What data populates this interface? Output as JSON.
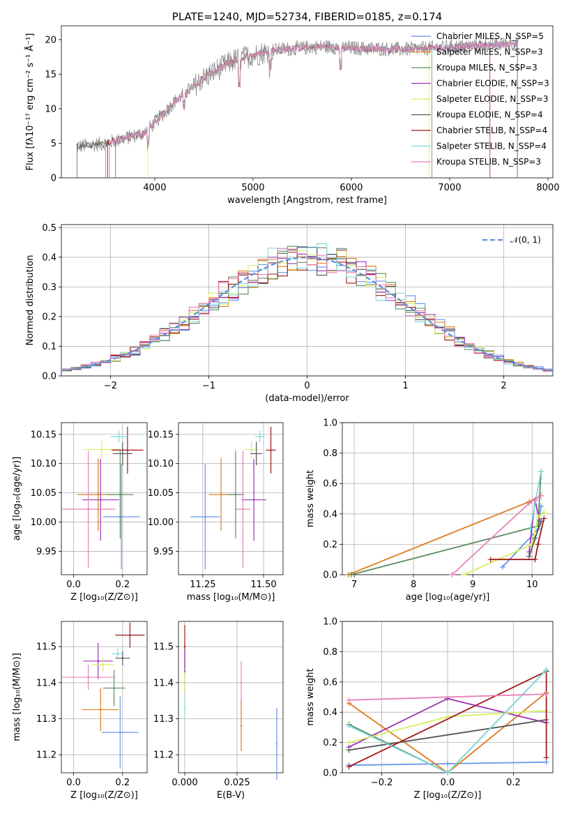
{
  "colors": [
    "#6495ed",
    "#e07b1c",
    "#5b8c5e",
    "#9b30b5",
    "#d4f060",
    "#555555",
    "#a01818",
    "#80dbe0",
    "#e880b8"
  ],
  "chart_data": [
    {
      "id": "spectrum",
      "type": "line",
      "title": "PLATE=1240, MJD=52734, FIBERID=0185, z=0.174",
      "xlabel": "wavelength [Angstrom, rest frame]",
      "ylabel": "Flux [fλ10⁻¹⁷ erg cm⁻² s⁻¹ Å⁻¹]",
      "xlim": [
        3050,
        8050
      ],
      "ylim": [
        0,
        22
      ],
      "xticks": [
        4000,
        5000,
        6000,
        7000,
        8000
      ],
      "yticks": [
        0,
        5,
        10,
        15,
        20
      ],
      "observed_color": "#808080",
      "continuum": {
        "x": [
          3200,
          3500,
          3900,
          4200,
          4500,
          4800,
          5200,
          5700,
          6000,
          6500,
          7000,
          7500,
          7700
        ],
        "y": [
          4.5,
          5.0,
          6.5,
          11.0,
          14.5,
          17.0,
          18.5,
          19.0,
          18.8,
          18.6,
          18.9,
          19.3,
          19.5
        ]
      },
      "model_start": [
        3520,
        3500,
        3540,
        3600,
        3930,
        3210,
        3520,
        3540,
        3540
      ],
      "model_end": [
        7690,
        7690,
        6820,
        7690,
        6790,
        7690,
        7410,
        7690,
        7690
      ],
      "series": [
        {
          "name": "Chabrier MILES, N_SSP=5"
        },
        {
          "name": "Salpeter MILES, N_SSP=3"
        },
        {
          "name": "Kroupa MILES, N_SSP=3"
        },
        {
          "name": "Chabrier ELODIE, N_SSP=3"
        },
        {
          "name": "Salpeter ELODIE, N_SSP=3"
        },
        {
          "name": "Kroupa ELODIE, N_SSP=4"
        },
        {
          "name": "Chabrier STELIB, N_SSP=4"
        },
        {
          "name": "Salpeter STELIB, N_SSP=4"
        },
        {
          "name": "Kroupa STELIB, N_SSP=3"
        }
      ],
      "legend": "top-right"
    },
    {
      "id": "residuals",
      "type": "line",
      "xlabel": "(data-model)/error",
      "ylabel": "Normed distribution",
      "xlim": [
        -2.5,
        2.5
      ],
      "ylim": [
        0,
        0.51
      ],
      "xticks": [
        -2,
        -1,
        0,
        1,
        2
      ],
      "yticks": [
        0.0,
        0.1,
        0.2,
        0.3,
        0.4,
        0.5
      ],
      "bin_width": 0.1,
      "reference_curve": {
        "label": "𝒩(0, 1)",
        "color": "#5b8dd9",
        "mean": 0,
        "sigma": 1
      },
      "legend": "top-right",
      "grid": true
    },
    {
      "id": "age_vs_Z",
      "type": "scatter",
      "xlabel": "Z [log₁₀(Z/Z⊙)]",
      "ylabel": "age  [log₁₀(age/yr)]",
      "xlim": [
        -0.05,
        0.3
      ],
      "ylim": [
        9.91,
        10.17
      ],
      "xticks": [
        0.0,
        0.2
      ],
      "yticks": [
        9.95,
        10.0,
        10.05,
        10.1,
        10.15
      ],
      "points": [
        {
          "x": 0.195,
          "y": 10.009,
          "xerr": 0.075,
          "yerr": 0.09
        },
        {
          "x": 0.1,
          "y": 10.047,
          "xerr": 0.085,
          "yerr": 0.062
        },
        {
          "x": 0.19,
          "y": 10.047,
          "xerr": 0.055,
          "yerr": 0.075
        },
        {
          "x": 0.11,
          "y": 10.038,
          "xerr": 0.075,
          "yerr": 0.07
        },
        {
          "x": 0.115,
          "y": 10.124,
          "xerr": 0.075,
          "yerr": 0.015
        },
        {
          "x": 0.2,
          "y": 10.117,
          "xerr": 0.04,
          "yerr": 0.02
        },
        {
          "x": 0.22,
          "y": 10.123,
          "xerr": 0.065,
          "yerr": 0.04
        },
        {
          "x": 0.185,
          "y": 10.146,
          "xerr": 0.035,
          "yerr": 0.01
        },
        {
          "x": 0.06,
          "y": 10.022,
          "xerr": 0.11,
          "yerr": 0.1
        }
      ],
      "grid": true
    },
    {
      "id": "age_vs_mass",
      "type": "scatter",
      "xlabel": "mass [log₁₀(M/M⊙)]",
      "ylabel": "",
      "xlim": [
        11.15,
        11.58
      ],
      "ylim": [
        9.91,
        10.17
      ],
      "xticks": [
        11.25,
        11.5
      ],
      "yticks": [
        9.95,
        10.0,
        10.05,
        10.1,
        10.15
      ],
      "points": [
        {
          "x": 11.26,
          "y": 10.009,
          "xerr": 0.06,
          "yerr": 0.09
        },
        {
          "x": 11.325,
          "y": 10.047,
          "xerr": 0.05,
          "yerr": 0.062
        },
        {
          "x": 11.385,
          "y": 10.047,
          "xerr": 0.035,
          "yerr": 0.075
        },
        {
          "x": 11.46,
          "y": 10.038,
          "xerr": 0.05,
          "yerr": 0.07
        },
        {
          "x": 11.45,
          "y": 10.124,
          "xerr": 0.03,
          "yerr": 0.015
        },
        {
          "x": 11.47,
          "y": 10.117,
          "xerr": 0.025,
          "yerr": 0.02
        },
        {
          "x": 11.53,
          "y": 10.123,
          "xerr": 0.02,
          "yerr": 0.04
        },
        {
          "x": 11.485,
          "y": 10.146,
          "xerr": 0.02,
          "yerr": 0.01
        },
        {
          "x": 11.415,
          "y": 10.022,
          "xerr": 0.03,
          "yerr": 0.1
        }
      ],
      "grid": true
    },
    {
      "id": "weight_vs_age",
      "type": "line",
      "xlabel": "age  [log₁₀(age/yr)]",
      "ylabel": "mass weight",
      "xlim": [
        6.8,
        10.35
      ],
      "ylim": [
        0.0,
        1.0
      ],
      "xticks": [
        7,
        8,
        9,
        10
      ],
      "yticks": [
        0.0,
        0.2,
        0.4,
        0.6,
        0.8,
        1.0
      ],
      "series": [
        {
          "x": [
            9.5,
            10.1,
            10.15
          ],
          "y": [
            0.05,
            0.3,
            0.45
          ]
        },
        {
          "x": [
            6.9,
            9.95,
            10.15
          ],
          "y": [
            0.0,
            0.48,
            0.52
          ]
        },
        {
          "x": [
            6.95,
            10.1,
            10.15
          ],
          "y": [
            0.0,
            0.32,
            0.68
          ]
        },
        {
          "x": [
            9.95,
            10.05,
            10.12
          ],
          "y": [
            0.15,
            0.49,
            0.36
          ]
        },
        {
          "x": [
            8.85,
            10.0,
            10.1,
            10.2
          ],
          "y": [
            0.0,
            0.2,
            0.38,
            0.41
          ]
        },
        {
          "x": [
            9.95,
            10.05,
            10.15
          ],
          "y": [
            0.12,
            0.24,
            0.35
          ]
        },
        {
          "x": [
            9.3,
            10.05,
            10.1,
            10.2
          ],
          "y": [
            0.1,
            0.1,
            0.2,
            0.37
          ]
        },
        {
          "x": [
            9.97,
            10.15
          ],
          "y": [
            0.3,
            0.68
          ]
        },
        {
          "x": [
            8.65,
            9.95,
            10.15
          ],
          "y": [
            0.0,
            0.47,
            0.52
          ]
        }
      ],
      "grid": true
    },
    {
      "id": "mass_vs_Z",
      "type": "scatter",
      "xlabel": "Z [log₁₀(Z/Z⊙)]",
      "ylabel": "mass [log₁₀(M/M⊙)]",
      "xlim": [
        -0.05,
        0.3
      ],
      "ylim": [
        11.15,
        11.57
      ],
      "xticks": [
        0.0,
        0.2
      ],
      "yticks": [
        11.2,
        11.3,
        11.4,
        11.5
      ],
      "points": [
        {
          "x": 0.19,
          "y": 11.262,
          "xerr": 0.075,
          "yerr": 0.1
        },
        {
          "x": 0.11,
          "y": 11.325,
          "xerr": 0.075,
          "yerr": 0.06
        },
        {
          "x": 0.165,
          "y": 11.385,
          "xerr": 0.045,
          "yerr": 0.05
        },
        {
          "x": 0.1,
          "y": 11.46,
          "xerr": 0.06,
          "yerr": 0.05
        },
        {
          "x": 0.12,
          "y": 11.45,
          "xerr": 0.045,
          "yerr": 0.02
        },
        {
          "x": 0.2,
          "y": 11.468,
          "xerr": 0.03,
          "yerr": 0.02
        },
        {
          "x": 0.23,
          "y": 11.532,
          "xerr": 0.06,
          "yerr": 0.035
        },
        {
          "x": 0.18,
          "y": 11.48,
          "xerr": 0.025,
          "yerr": 0.015
        },
        {
          "x": 0.06,
          "y": 11.415,
          "xerr": 0.11,
          "yerr": 0.035
        }
      ],
      "grid": true
    },
    {
      "id": "mass_vs_EBV",
      "type": "scatter",
      "xlabel": "E(B-V)",
      "ylabel": "",
      "xlim": [
        -0.003,
        0.047
      ],
      "ylim": [
        11.15,
        11.57
      ],
      "xticks": [
        0.0,
        0.025
      ],
      "yticks": [
        11.2,
        11.3,
        11.4,
        11.5
      ],
      "points": [
        {
          "x": 0.0,
          "y": 11.5,
          "yerr": 0.06
        },
        {
          "x": 0.0,
          "y": 11.43,
          "yerr": 0.06
        },
        {
          "x": 0.0,
          "y": 11.38,
          "yerr": 0.05
        },
        {
          "x": 0.0,
          "y": 11.33,
          "yerr": 0.04
        },
        {
          "x": 0.027,
          "y": 11.4,
          "yerr": 0.06
        },
        {
          "x": 0.027,
          "y": 11.28,
          "yerr": 0.07
        },
        {
          "x": 0.044,
          "y": 11.23,
          "yerr": 0.1
        }
      ],
      "point_colors": [
        6,
        3,
        4,
        7,
        8,
        1,
        0
      ],
      "grid": true
    },
    {
      "id": "weight_vs_Z",
      "type": "line",
      "xlabel": "Z [log₁₀(Z/Z⊙)]",
      "ylabel": "mass weight",
      "xlim": [
        -0.32,
        0.32
      ],
      "ylim": [
        0.0,
        1.0
      ],
      "xticks": [
        -0.2,
        0.0,
        0.2
      ],
      "yticks": [
        0.0,
        0.2,
        0.4,
        0.6,
        0.8,
        1.0
      ],
      "series": [
        {
          "x": [
            -0.3,
            0.0,
            0.3
          ],
          "y": [
            0.05,
            0.06,
            0.07
          ]
        },
        {
          "x": [
            -0.3,
            0.0,
            0.3
          ],
          "y": [
            0.46,
            0.0,
            0.53
          ]
        },
        {
          "x": [
            -0.3,
            0.0,
            0.3
          ],
          "y": [
            0.32,
            0.0,
            0.68
          ]
        },
        {
          "x": [
            -0.3,
            0.0,
            0.3
          ],
          "y": [
            0.17,
            0.49,
            0.33
          ]
        },
        {
          "x": [
            -0.3,
            0.0,
            0.3
          ],
          "y": [
            0.2,
            0.37,
            0.41
          ]
        },
        {
          "x": [
            -0.3,
            0.3
          ],
          "y": [
            0.15,
            0.35
          ]
        },
        {
          "x": [
            -0.3,
            0.3,
            0.3
          ],
          "y": [
            0.04,
            0.67,
            0.1
          ]
        },
        {
          "x": [
            -0.3,
            0.0,
            0.3
          ],
          "y": [
            0.31,
            0.0,
            0.68
          ]
        },
        {
          "x": [
            -0.3,
            0.3
          ],
          "y": [
            0.48,
            0.52
          ]
        }
      ],
      "grid": true
    }
  ]
}
